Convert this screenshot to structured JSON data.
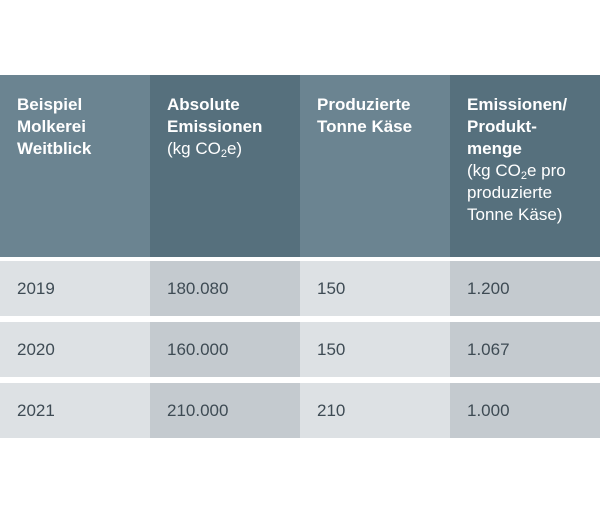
{
  "header": {
    "col1": {
      "line1": "Beispiel",
      "line2": "Molkerei",
      "line3": "Weitblick"
    },
    "col2": {
      "line1": "Absolute",
      "line2": "Emissionen",
      "unit_pre": "(kg CO",
      "unit_sub": "2",
      "unit_post": "e)"
    },
    "col3": {
      "line1": "Produzierte",
      "line2": "Tonne Käse"
    },
    "col4": {
      "line1": "Emissionen/",
      "line2": "Produkt-",
      "line3": "menge",
      "unit_pre": "(kg CO",
      "unit_sub": "2",
      "unit_post": "e pro",
      "unit_line2": "produzierte",
      "unit_line3": "Tonne Käse)"
    }
  },
  "rows": [
    {
      "year": "2019",
      "absolute": "180.080",
      "tonnes": "150",
      "per_unit": "1.200"
    },
    {
      "year": "2020",
      "absolute": "160.000",
      "tonnes": "150",
      "per_unit": "1.067"
    },
    {
      "year": "2021",
      "absolute": "210.000",
      "tonnes": "210",
      "per_unit": "1.000"
    }
  ]
}
